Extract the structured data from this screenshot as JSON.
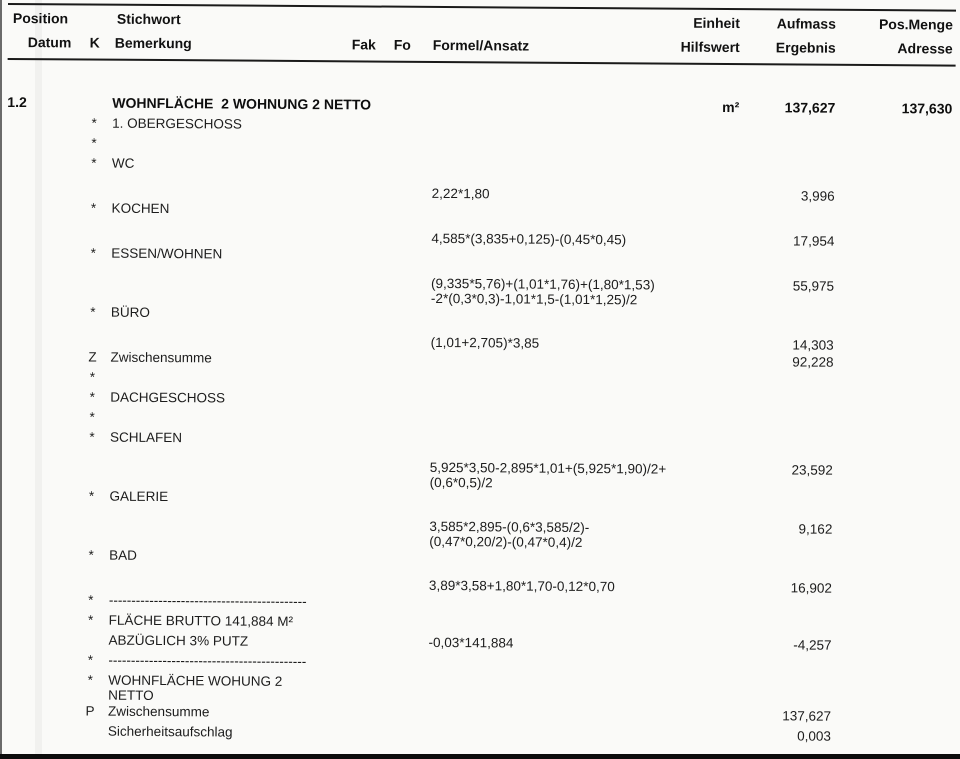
{
  "colors": {
    "paper": "#fafaf8",
    "ink": "#1c1c1c",
    "rule": "#1a1a1a"
  },
  "header": {
    "row1": {
      "position": "Position",
      "stichwort": "Stichwort",
      "einheit": "Einheit",
      "aufmass": "Aufmass",
      "pos_menge": "Pos.Menge"
    },
    "row2": {
      "datum": "Datum",
      "k": "K",
      "bemerkung": "Bemerkung",
      "fak": "Fak",
      "fo": "Fo",
      "formel": "Formel/Ansatz",
      "hilfswert": "Hilfswert",
      "ergebnis": "Ergebnis",
      "adresse": "Adresse"
    }
  },
  "rows": [
    {
      "pos": "1.2",
      "text": "WOHNFLÄCHE  2 WOHNUNG 2 NETTO",
      "einheit": "m²",
      "ergebnis": "137,627",
      "menge": "137,630",
      "bold": true
    },
    {
      "k": "*",
      "text": "1. OBERGESCHOSS"
    },
    {
      "k": "*"
    },
    {
      "k": "*",
      "text": "WC"
    },
    {
      "formula": "2,22*1,80",
      "ergebnis": "3,996"
    },
    {
      "k": "*",
      "text": "KOCHEN"
    },
    {
      "formula": "4,585*(3,835+0,125)-(0,45*0,45)",
      "ergebnis": "17,954"
    },
    {
      "k": "*",
      "text": "ESSEN/WOHNEN"
    },
    {
      "formula": "(9,335*5,76)+(1,01*1,76)+(1,80*1,53)\n-2*(0,3*0,3)-1,01*1,5-(1,01*1,25)/2",
      "ergebnis": "55,975"
    },
    {
      "k": "*",
      "text": "BÜRO"
    },
    {
      "formula": "(1,01+2,705)*3,85",
      "ergebnis": "14,303"
    },
    {
      "k": "Z",
      "text": "Zwischensumme",
      "ergebnis": "92,228"
    },
    {
      "k": "*"
    },
    {
      "k": "*",
      "text": "DACHGESCHOSS"
    },
    {
      "k": "*"
    },
    {
      "k": "*",
      "text": "SCHLAFEN"
    },
    {
      "formula": "5,925*3,50-2,895*1,01+(5,925*1,90)/2+\n(0,6*0,5)/2",
      "ergebnis": "23,592"
    },
    {
      "k": "*",
      "text": "GALERIE"
    },
    {
      "formula": "3,585*2,895-(0,6*3,585/2)-\n(0,47*0,20/2)-(0,47*0,4)/2",
      "ergebnis": "9,162"
    },
    {
      "k": "*",
      "text": "BAD"
    },
    {
      "formula": "3,89*3,58+1,80*1,70-0,12*0,70",
      "ergebnis": "16,902"
    },
    {
      "k": "*",
      "text": "--------------------------------------------"
    },
    {
      "k": "*",
      "text": "FLÄCHE BRUTTO 141,884 M²"
    },
    {
      "text": "ABZÜGLICH 3% PUTZ",
      "formula": "-0,03*141,884",
      "ergebnis": "-4,257"
    },
    {
      "k": "*",
      "text": "--------------------------------------------"
    },
    {
      "k": "*",
      "text": "WOHNFLÄCHE WOHUNG 2\nNETTO"
    },
    {
      "k": "P",
      "text": "Zwischensumme",
      "ergebnis": "137,627"
    },
    {
      "text": "Sicherheitsaufschlag",
      "ergebnis": "0,003"
    }
  ]
}
